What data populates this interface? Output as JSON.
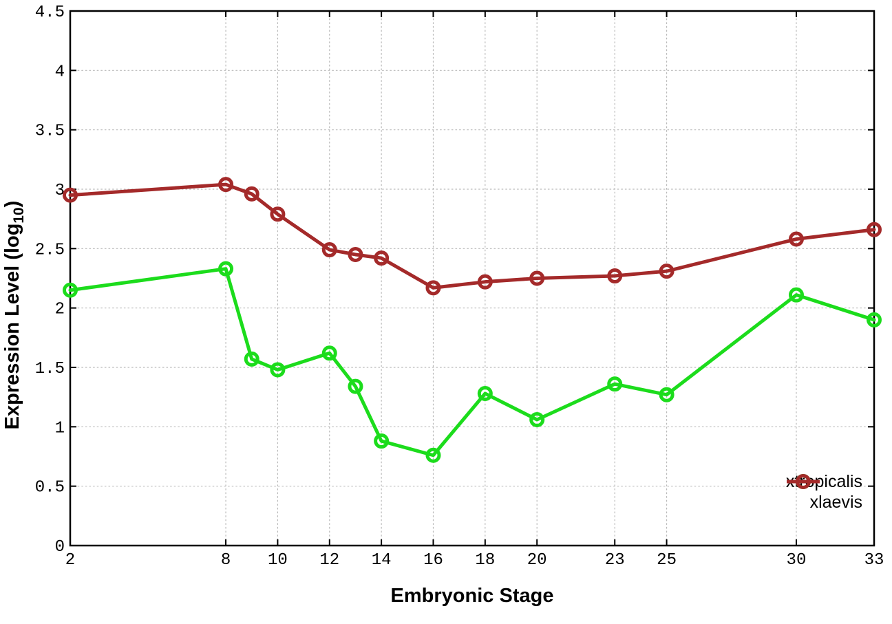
{
  "chart_data": {
    "type": "line",
    "title": "",
    "xlabel": "Embryonic Stage",
    "ylabel": "Expression Level (log10)",
    "ylabel_parts": {
      "main": "Expression Level (log",
      "sub": "10",
      "end": ")"
    },
    "x": [
      2,
      8,
      9,
      10,
      12,
      13,
      14,
      16,
      18,
      20,
      23,
      25,
      30,
      33
    ],
    "series": [
      {
        "name": "xtropicalis",
        "color": "#1cdc1c",
        "values": [
          2.15,
          2.33,
          1.57,
          1.48,
          1.62,
          1.34,
          0.88,
          0.76,
          1.28,
          1.06,
          1.36,
          1.27,
          2.11,
          1.9
        ]
      },
      {
        "name": "xlaevis",
        "color": "#a42a2a",
        "values": [
          2.95,
          3.04,
          2.96,
          2.79,
          2.49,
          2.45,
          2.42,
          2.17,
          2.22,
          2.25,
          2.27,
          2.31,
          2.58,
          2.66
        ]
      }
    ],
    "xlim": [
      2,
      33
    ],
    "ylim": [
      0,
      4.5
    ],
    "x_tick_labels": [
      "2",
      "8",
      "10",
      "12",
      "14",
      "16",
      "18",
      "20",
      "23",
      "25",
      "30",
      "33"
    ],
    "x_tick_values": [
      2,
      8,
      10,
      12,
      14,
      16,
      18,
      20,
      23,
      25,
      30,
      33
    ],
    "y_tick_labels": [
      "0",
      "0.5",
      "1",
      "1.5",
      "2",
      "2.5",
      "3",
      "3.5",
      "4",
      "4.5"
    ],
    "y_tick_values": [
      0,
      0.5,
      1,
      1.5,
      2,
      2.5,
      3,
      3.5,
      4,
      4.5
    ],
    "grid": true,
    "legend_position": "inside-bottom-right",
    "colors": {
      "background": "#ffffff",
      "axis": "#000000",
      "grid": "#b9b9b9",
      "tick_text": "#000000"
    }
  }
}
